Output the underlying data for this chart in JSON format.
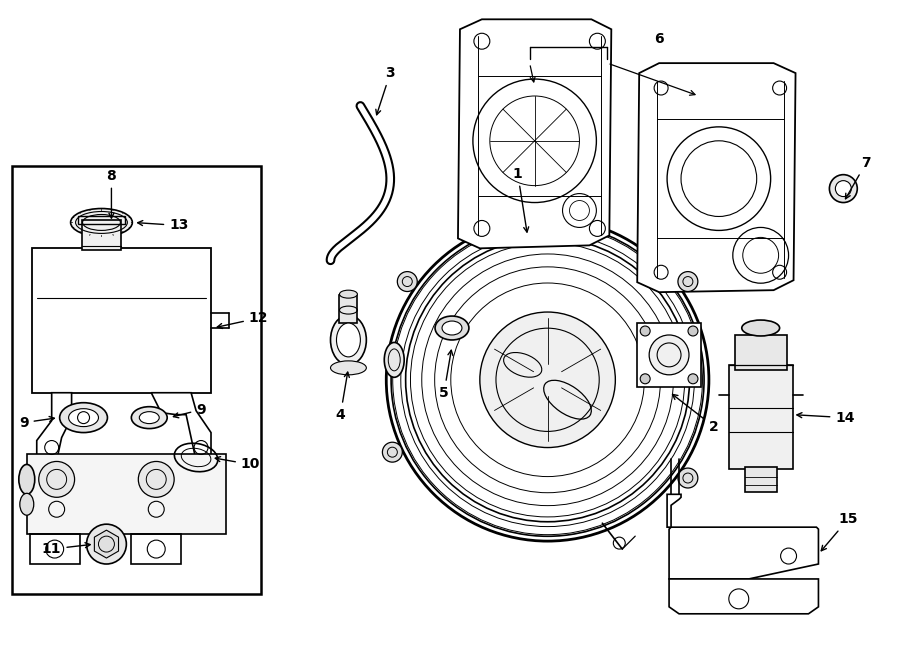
{
  "bg_color": "#ffffff",
  "line_color": "#000000",
  "fig_width": 9.0,
  "fig_height": 6.61,
  "dpi": 100,
  "lw": 1.2
}
